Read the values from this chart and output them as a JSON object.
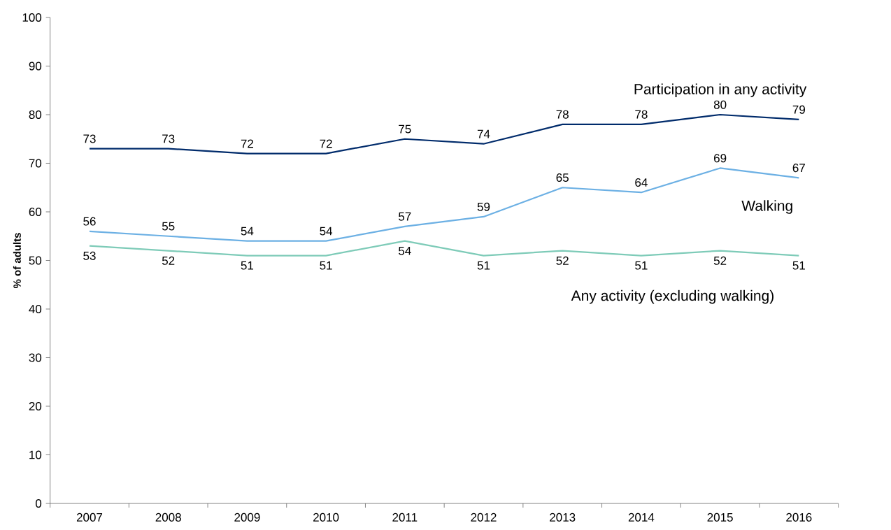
{
  "chart_data": {
    "type": "line",
    "ylabel": "% of adults",
    "categories": [
      "2007",
      "2008",
      "2009",
      "2010",
      "2011",
      "2012",
      "2013",
      "2014",
      "2015",
      "2016"
    ],
    "series": [
      {
        "name": "Participation in any activity",
        "color": "#002b6b",
        "values": [
          73,
          73,
          72,
          72,
          75,
          74,
          78,
          78,
          80,
          79
        ]
      },
      {
        "name": "Walking",
        "color": "#6cb0e4",
        "values": [
          56,
          55,
          54,
          54,
          57,
          59,
          65,
          64,
          69,
          67
        ]
      },
      {
        "name": "Any activity (excluding walking)",
        "color": "#7ecbb8",
        "values": [
          53,
          52,
          51,
          51,
          54,
          51,
          52,
          51,
          52,
          51
        ]
      }
    ],
    "ylim": [
      0,
      100
    ],
    "yticks": [
      0,
      10,
      20,
      30,
      40,
      50,
      60,
      70,
      80,
      90,
      100
    ],
    "data_labels": true,
    "grid": false,
    "legend": false,
    "marker": "none",
    "line_style": "solid"
  }
}
